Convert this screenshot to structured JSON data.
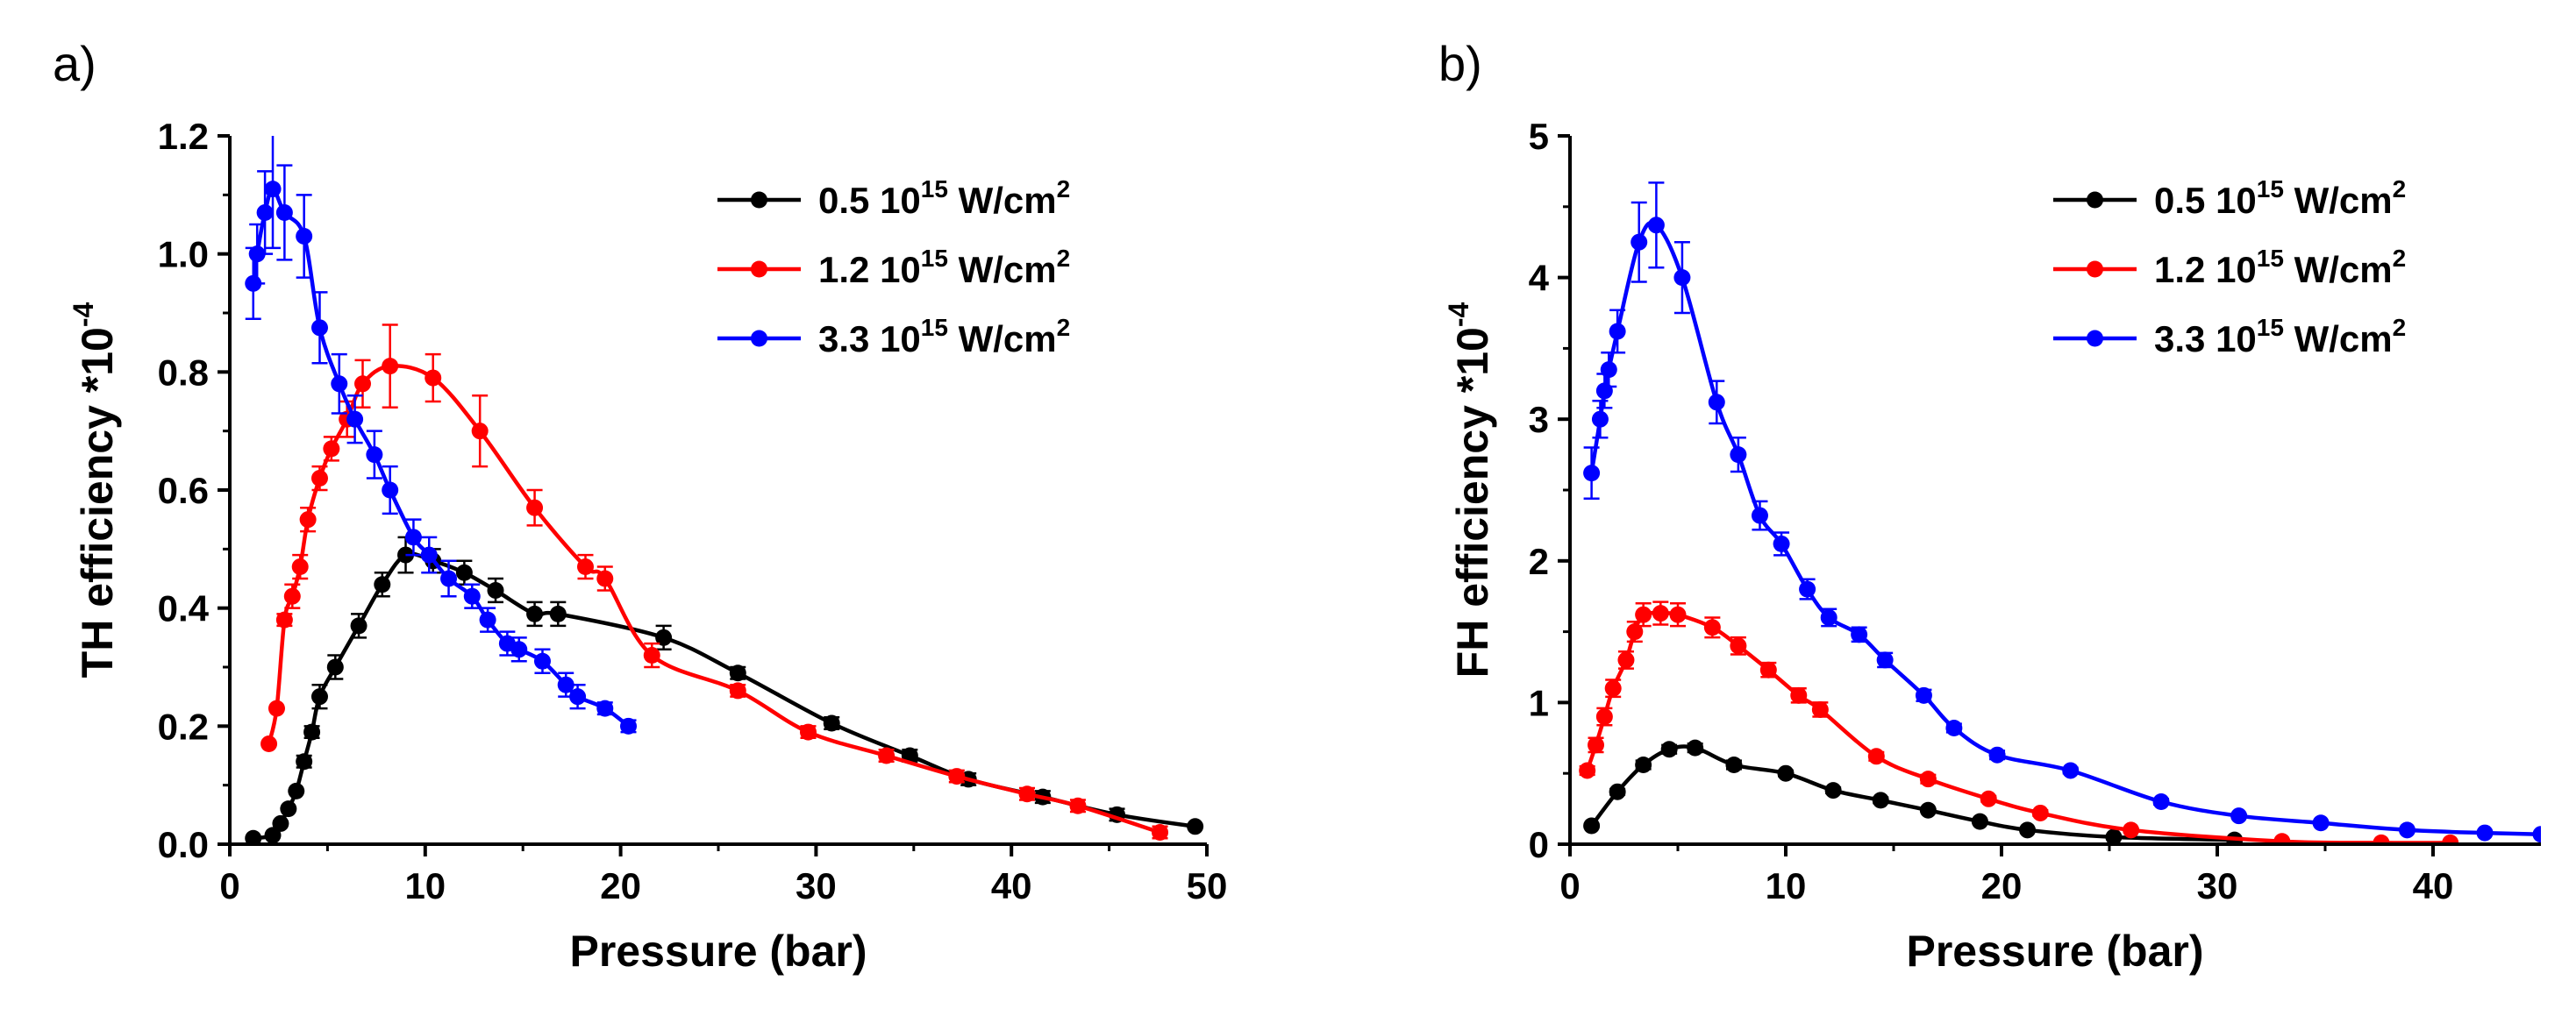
{
  "figure": {
    "panels": [
      "a)",
      "b)"
    ],
    "legend_unit_base": "10",
    "legend_unit_exp": "15",
    "legend_unit_text": " W/cm",
    "legend_unit_sup": "2",
    "ylabel_exp": "-4"
  },
  "chart_data": [
    {
      "type": "line",
      "panel": "a)",
      "xlabel": "Pressure (bar)",
      "ylabel": "TH efficiency *10",
      "xlim": [
        0,
        50
      ],
      "ylim": [
        0,
        1.2
      ],
      "xticks": [
        0,
        10,
        20,
        30,
        40,
        50
      ],
      "yticks": [
        0.0,
        0.2,
        0.4,
        0.6,
        0.8,
        1.0,
        1.2
      ],
      "ytick_labels": [
        "0.0",
        "0.2",
        "0.4",
        "0.6",
        "0.8",
        "1.0",
        "1.2"
      ],
      "legend_position": "top-right",
      "series": [
        {
          "name": "0.5 10^15 W/cm^2",
          "intensity": "0.5",
          "color": "#000000",
          "x": [
            1.2,
            2.2,
            2.6,
            3.0,
            3.4,
            3.8,
            4.2,
            4.6,
            5.4,
            6.6,
            7.8,
            9.0,
            10.4,
            12.0,
            13.6,
            15.6,
            16.8,
            22.2,
            26.0,
            30.8,
            34.8,
            37.8,
            41.6,
            45.4,
            49.4
          ],
          "y": [
            0.01,
            0.015,
            0.035,
            0.06,
            0.09,
            0.14,
            0.19,
            0.25,
            0.3,
            0.37,
            0.44,
            0.49,
            0.48,
            0.46,
            0.43,
            0.39,
            0.39,
            0.35,
            0.29,
            0.205,
            0.15,
            0.11,
            0.08,
            0.05,
            0.03
          ],
          "err": [
            0,
            0,
            0,
            0,
            0,
            0.01,
            0.01,
            0.02,
            0.02,
            0.02,
            0.02,
            0.03,
            0.02,
            0.02,
            0.02,
            0.02,
            0.02,
            0.02,
            0.01,
            0.01,
            0.01,
            0.01,
            0.01,
            0.01,
            0
          ]
        },
        {
          "name": "1.2 10^15 W/cm^2",
          "intensity": "1.2",
          "color": "#ff0000",
          "x": [
            2.0,
            2.4,
            2.8,
            3.2,
            3.6,
            4.0,
            4.6,
            5.2,
            6.0,
            6.8,
            8.2,
            10.4,
            12.8,
            15.6,
            18.2,
            19.2,
            21.6,
            26.0,
            29.6,
            33.6,
            37.2,
            40.8,
            43.4,
            47.6
          ],
          "y": [
            0.17,
            0.23,
            0.38,
            0.42,
            0.47,
            0.55,
            0.62,
            0.67,
            0.72,
            0.78,
            0.81,
            0.79,
            0.7,
            0.57,
            0.47,
            0.45,
            0.32,
            0.26,
            0.19,
            0.15,
            0.115,
            0.085,
            0.065,
            0.02
          ],
          "err": [
            0,
            0,
            0.01,
            0.02,
            0.02,
            0.02,
            0.02,
            0.02,
            0.03,
            0.04,
            0.07,
            0.04,
            0.06,
            0.03,
            0.02,
            0.02,
            0.02,
            0.01,
            0.01,
            0.01,
            0.01,
            0.01,
            0.01,
            0.01
          ]
        },
        {
          "name": "3.3 10^15 W/cm^2",
          "intensity": "3.3",
          "color": "#0000ff",
          "x": [
            1.2,
            1.4,
            1.8,
            2.2,
            2.8,
            3.8,
            4.6,
            5.6,
            6.4,
            7.4,
            8.2,
            9.4,
            10.2,
            11.2,
            12.4,
            13.2,
            14.2,
            14.8,
            16.0,
            17.2,
            17.8,
            19.2,
            20.4
          ],
          "y": [
            0.95,
            1.0,
            1.07,
            1.11,
            1.07,
            1.03,
            0.875,
            0.78,
            0.72,
            0.66,
            0.6,
            0.52,
            0.49,
            0.45,
            0.42,
            0.38,
            0.34,
            0.33,
            0.31,
            0.27,
            0.25,
            0.23,
            0.2
          ],
          "err": [
            0.06,
            0.05,
            0.07,
            0.1,
            0.08,
            0.07,
            0.06,
            0.05,
            0.04,
            0.04,
            0.04,
            0.03,
            0.03,
            0.03,
            0.02,
            0.02,
            0.02,
            0.02,
            0.02,
            0.02,
            0.02,
            0.01,
            0.01
          ]
        }
      ]
    },
    {
      "type": "line",
      "panel": "b)",
      "xlabel": "Pressure (bar)",
      "ylabel": "FH efficiency *10",
      "xlim": [
        0,
        45
      ],
      "ylim": [
        0,
        5
      ],
      "xticks": [
        0,
        10,
        20,
        30,
        40
      ],
      "yticks": [
        0,
        1,
        2,
        3,
        4,
        5
      ],
      "ytick_labels": [
        "0",
        "1",
        "2",
        "3",
        "4",
        "5"
      ],
      "legend_position": "top-right",
      "series": [
        {
          "name": "0.5 10^15 W/cm^2",
          "intensity": "0.5",
          "color": "#000000",
          "x": [
            1.0,
            2.2,
            3.4,
            4.6,
            5.8,
            7.6,
            10.0,
            12.2,
            14.4,
            16.6,
            19.0,
            21.2,
            25.2,
            30.8
          ],
          "y": [
            0.13,
            0.37,
            0.56,
            0.67,
            0.68,
            0.56,
            0.5,
            0.38,
            0.31,
            0.24,
            0.16,
            0.1,
            0.05,
            0.03
          ],
          "err": [
            0.01,
            0.02,
            0.03,
            0.03,
            0.03,
            0.03,
            0.02,
            0.02,
            0.02,
            0.01,
            0.01,
            0.01,
            0.01,
            0.01
          ]
        },
        {
          "name": "1.2 10^15 W/cm^2",
          "intensity": "1.2",
          "color": "#ff0000",
          "x": [
            0.8,
            1.2,
            1.6,
            2.0,
            2.6,
            3.0,
            3.4,
            4.2,
            5.0,
            6.6,
            7.8,
            9.2,
            10.6,
            11.6,
            14.2,
            16.6,
            19.4,
            21.8,
            26.0,
            33.0,
            37.6,
            40.8
          ],
          "y": [
            0.52,
            0.7,
            0.9,
            1.1,
            1.3,
            1.5,
            1.62,
            1.63,
            1.62,
            1.53,
            1.4,
            1.23,
            1.05,
            0.95,
            0.62,
            0.46,
            0.32,
            0.22,
            0.1,
            0.02,
            0.01,
            0.01
          ],
          "err": [
            0.03,
            0.05,
            0.06,
            0.06,
            0.06,
            0.07,
            0.08,
            0.08,
            0.08,
            0.07,
            0.06,
            0.05,
            0.05,
            0.05,
            0.03,
            0.03,
            0.02,
            0.02,
            0.01,
            0.01,
            0.01,
            0.01
          ]
        },
        {
          "name": "3.3 10^15 W/cm^2",
          "intensity": "3.3",
          "color": "#0000ff",
          "x": [
            1.0,
            1.4,
            1.6,
            1.8,
            2.2,
            3.2,
            4.0,
            5.2,
            6.8,
            7.8,
            8.8,
            9.8,
            11.0,
            12.0,
            13.4,
            14.6,
            16.4,
            17.8,
            19.8,
            23.2,
            27.4,
            31.0,
            34.8,
            38.8,
            42.4,
            45.0
          ],
          "y": [
            2.62,
            3.0,
            3.2,
            3.35,
            3.62,
            4.25,
            4.37,
            4.0,
            3.12,
            2.75,
            2.32,
            2.12,
            1.8,
            1.6,
            1.48,
            1.3,
            1.05,
            0.82,
            0.63,
            0.52,
            0.3,
            0.2,
            0.15,
            0.1,
            0.08,
            0.07
          ],
          "err": [
            0.18,
            0.13,
            0.12,
            0.12,
            0.15,
            0.28,
            0.3,
            0.25,
            0.15,
            0.12,
            0.1,
            0.08,
            0.07,
            0.06,
            0.05,
            0.05,
            0.04,
            0.03,
            0.03,
            0.02,
            0.02,
            0.01,
            0.01,
            0.01,
            0.01,
            0.01
          ]
        }
      ]
    }
  ]
}
